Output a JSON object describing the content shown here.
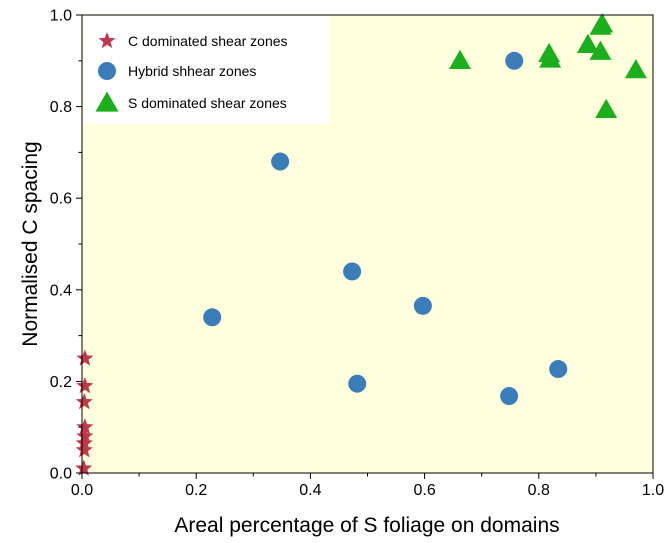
{
  "chart_data": {
    "type": "scatter",
    "title": "",
    "xlabel": "Areal percentage of S foliage on domains",
    "ylabel": "Normalised C spacing",
    "xlim": [
      0.0,
      1.0
    ],
    "ylim": [
      0.0,
      1.0
    ],
    "xticks": [
      "0.0",
      "0.2",
      "0.4",
      "0.6",
      "0.8",
      "1.0"
    ],
    "yticks": [
      "0.0",
      "0.2",
      "0.4",
      "0.6",
      "0.8",
      "1.0"
    ],
    "grid": false,
    "legend_position": "top-left",
    "plot_background": "#FFFFDD",
    "series": [
      {
        "name": "C dominated shear zones",
        "marker": "star",
        "color": "#C0394B",
        "points": [
          [
            0.005,
            0.25
          ],
          [
            0.005,
            0.19
          ],
          [
            0.004,
            0.155
          ],
          [
            0.005,
            0.1
          ],
          [
            0.005,
            0.08
          ],
          [
            0.004,
            0.065
          ],
          [
            0.004,
            0.05
          ],
          [
            0.003,
            0.01
          ]
        ]
      },
      {
        "name": "Hybrid shhear zones",
        "marker": "circle",
        "color": "#3B7DB8",
        "points": [
          [
            0.757,
            0.9
          ],
          [
            0.347,
            0.68
          ],
          [
            0.473,
            0.44
          ],
          [
            0.228,
            0.34
          ],
          [
            0.597,
            0.365
          ],
          [
            0.482,
            0.195
          ],
          [
            0.834,
            0.227
          ],
          [
            0.748,
            0.168
          ]
        ]
      },
      {
        "name": "S dominated shear zones",
        "marker": "triangle",
        "color": "#1CAE1C",
        "points": [
          [
            0.662,
            0.9
          ],
          [
            0.818,
            0.915
          ],
          [
            0.82,
            0.903
          ],
          [
            0.886,
            0.935
          ],
          [
            0.908,
            0.975
          ],
          [
            0.911,
            0.98
          ],
          [
            0.908,
            0.92
          ],
          [
            0.97,
            0.88
          ],
          [
            0.918,
            0.793
          ]
        ]
      }
    ]
  }
}
